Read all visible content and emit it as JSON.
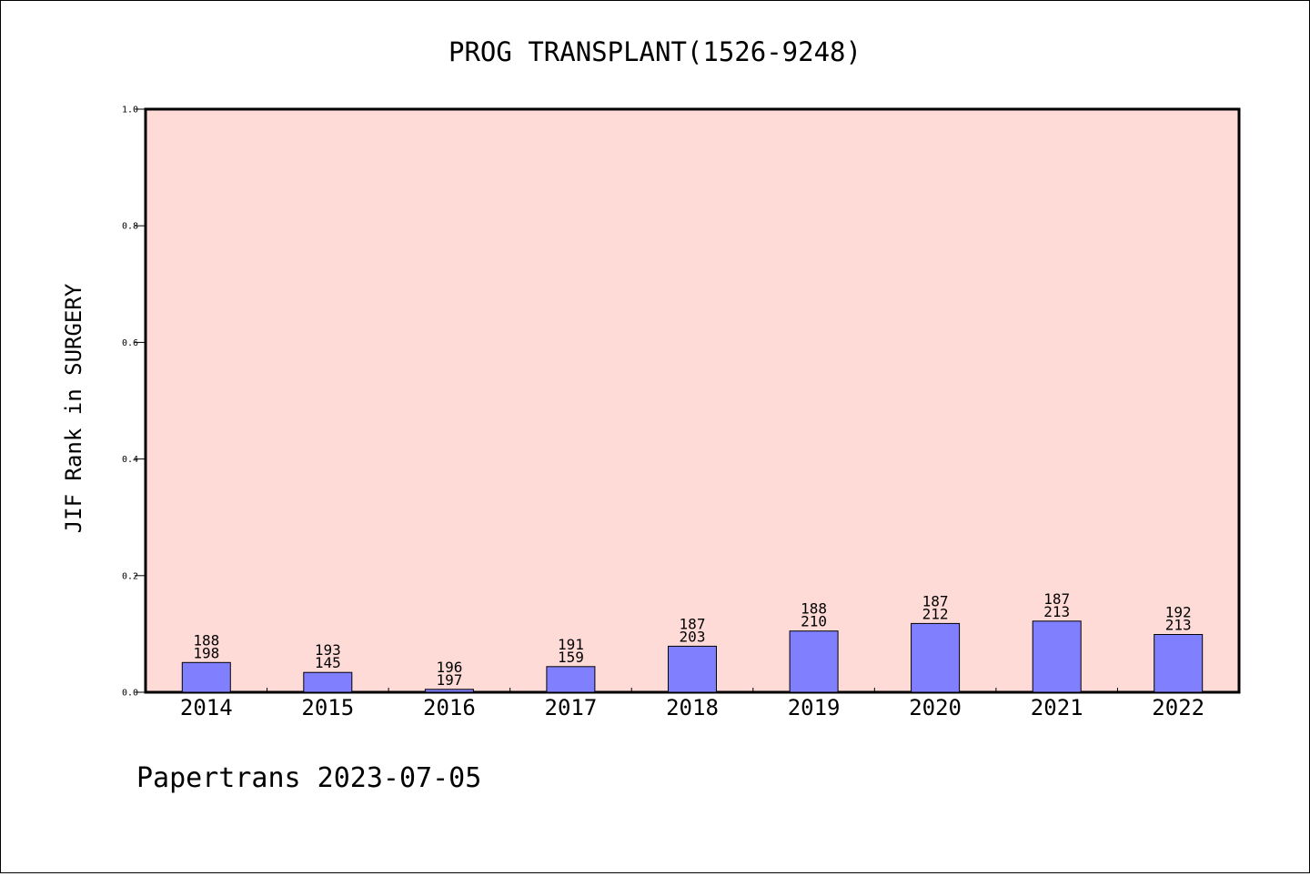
{
  "chart_data": {
    "type": "bar",
    "title": "PROG TRANSPLANT(1526-9248)",
    "xlabel": "",
    "ylabel": "JIF Rank in SURGERY",
    "ylim": [
      0,
      1.0
    ],
    "yticks": [
      "0.0",
      "0.2",
      "0.4",
      "0.6",
      "0.8",
      "1.0"
    ],
    "ytick_values": [
      0.0,
      0.2,
      0.4,
      0.6,
      0.8,
      1.0
    ],
    "categories": [
      "2014",
      "2015",
      "2016",
      "2017",
      "2018",
      "2019",
      "2020",
      "2021",
      "2022"
    ],
    "values": [
      0.051,
      0.034,
      0.005,
      0.044,
      0.079,
      0.105,
      0.118,
      0.122,
      0.099
    ],
    "bar_labels": [
      [
        "188",
        "198"
      ],
      [
        "193",
        "145"
      ],
      [
        "196",
        "197"
      ],
      [
        "191",
        "159"
      ],
      [
        "187",
        "203"
      ],
      [
        "188",
        "210"
      ],
      [
        "187",
        "212"
      ],
      [
        "187",
        "213"
      ],
      [
        "192",
        "213"
      ]
    ],
    "grid": false,
    "legend": "none",
    "colors": {
      "plot_background": "#ffdbd8",
      "bar_fill": "#8080ff",
      "bar_edge": "#000000"
    }
  },
  "footer": {
    "text": "Papertrans 2023-07-05"
  }
}
